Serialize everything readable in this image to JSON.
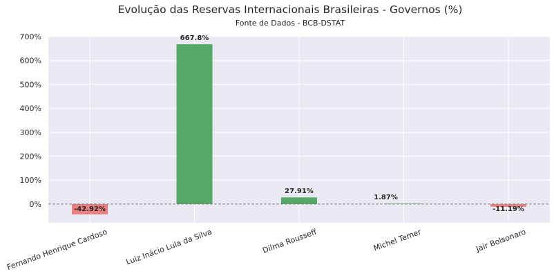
{
  "chart_data": {
    "type": "bar",
    "title": "Evolução das Reservas Internacionais Brasileiras - Governos (%)",
    "subtitle": "Fonte de Dados - BCB-DSTAT",
    "xlabel": "",
    "ylabel": "",
    "categories": [
      "Fernando Henrique Cardoso",
      "Luiz Inácio Lula da Silva",
      "Dilma Rousseff",
      "Michel Temer",
      "Jair Bolsonaro"
    ],
    "values": [
      -42.92,
      667.8,
      27.91,
      1.87,
      -11.19
    ],
    "value_labels": [
      "-42.92%",
      "667.8%",
      "27.91%",
      "1.87%",
      "-11.19%"
    ],
    "ylim": [
      -78,
      700
    ],
    "yticks": [
      0,
      100,
      200,
      300,
      400,
      500,
      600,
      700
    ],
    "ytick_labels": [
      "0%",
      "100%",
      "200%",
      "300%",
      "400%",
      "500%",
      "600%",
      "700%"
    ],
    "grid": true,
    "zero_line": "dashed",
    "colors": {
      "positive": "#55a868",
      "negative": "#e88080",
      "background": "#eaeaf2",
      "grid": "#ffffff",
      "zero_line": "#777777",
      "text": "#262626"
    }
  }
}
